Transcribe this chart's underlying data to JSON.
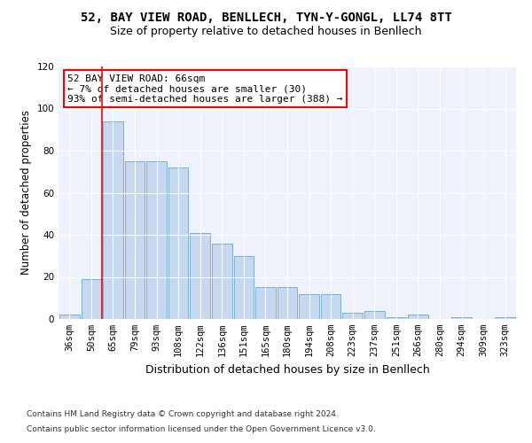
{
  "title1": "52, BAY VIEW ROAD, BENLLECH, TYN-Y-GONGL, LL74 8TT",
  "title2": "Size of property relative to detached houses in Benllech",
  "xlabel": "Distribution of detached houses by size in Benllech",
  "ylabel": "Number of detached properties",
  "categories": [
    "36sqm",
    "50sqm",
    "65sqm",
    "79sqm",
    "93sqm",
    "108sqm",
    "122sqm",
    "136sqm",
    "151sqm",
    "165sqm",
    "180sqm",
    "194sqm",
    "208sqm",
    "223sqm",
    "237sqm",
    "251sqm",
    "266sqm",
    "280sqm",
    "294sqm",
    "309sqm",
    "323sqm"
  ],
  "values": [
    2,
    19,
    94,
    75,
    75,
    72,
    41,
    36,
    30,
    15,
    15,
    12,
    12,
    3,
    4,
    1,
    2,
    0,
    1,
    0,
    1
  ],
  "bar_color": "#c5d8f0",
  "bar_edge_color": "#7aafd4",
  "red_line_x": 1.5,
  "annotation_text": "52 BAY VIEW ROAD: 66sqm\n← 7% of detached houses are smaller (30)\n93% of semi-detached houses are larger (388) →",
  "annotation_box_color": "white",
  "annotation_box_edge_color": "red",
  "ylim": [
    0,
    120
  ],
  "yticks": [
    0,
    20,
    40,
    60,
    80,
    100,
    120
  ],
  "footnote1": "Contains HM Land Registry data © Crown copyright and database right 2024.",
  "footnote2": "Contains public sector information licensed under the Open Government Licence v3.0.",
  "bg_color": "#eef2fb",
  "grid_color": "white",
  "title1_fontsize": 10,
  "title2_fontsize": 9,
  "xlabel_fontsize": 9,
  "ylabel_fontsize": 8.5,
  "tick_fontsize": 7.5,
  "annotation_fontsize": 8,
  "footnote_fontsize": 6.5
}
